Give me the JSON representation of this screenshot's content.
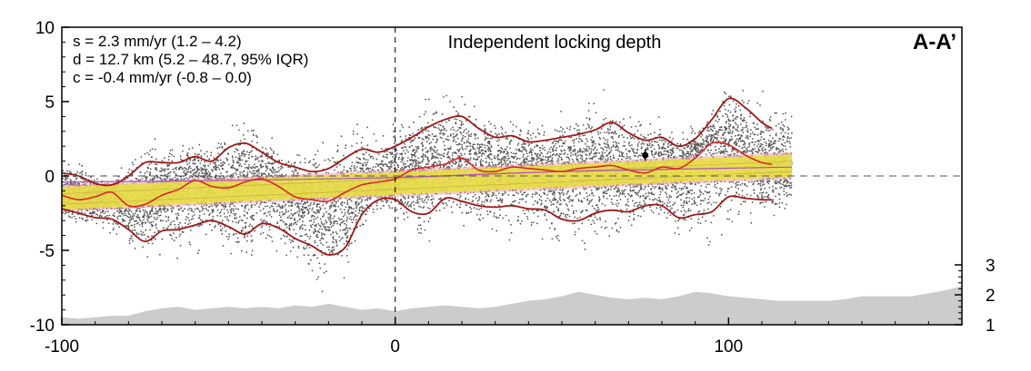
{
  "chart_data": {
    "type": "scatter",
    "title": "Independent locking depth",
    "panel_label": "A-A’",
    "annotations": [
      "s =  2.3 mm/yr (1.2 – 4.2)",
      "d =  12.7 km (5.2 – 48.7, 95% IQR)",
      "c =  -0.4 mm/yr (-0.8 – 0.0)"
    ],
    "xlabel": "",
    "ylabel": "",
    "xlim": [
      -100,
      170
    ],
    "ylim": [
      -10,
      10
    ],
    "x_ticks": [
      -100,
      0,
      100
    ],
    "y_ticks": [
      10,
      5,
      0,
      -5,
      -10
    ],
    "y_ticks_right": [
      3,
      2,
      1
    ],
    "y_right_lim": [
      1,
      3
    ],
    "grid": false,
    "reference_lines": {
      "x": 0,
      "y": 0
    },
    "colors": {
      "points": "#555555",
      "envelope": "#a01818",
      "median": "#d82828",
      "uncertainty_band": "#e6e23c",
      "model_band": "#f0a0b0",
      "model_line": "#b050c0",
      "topography": "#cccccc"
    },
    "envelope_upper": {
      "x": [
        -100,
        -95,
        -90,
        -85,
        -80,
        -75,
        -70,
        -65,
        -60,
        -55,
        -50,
        -45,
        -40,
        -35,
        -30,
        -25,
        -20,
        -15,
        -10,
        -5,
        0,
        5,
        10,
        15,
        20,
        25,
        30,
        35,
        40,
        45,
        50,
        55,
        60,
        65,
        70,
        75,
        80,
        85,
        90,
        95,
        100,
        105,
        110,
        113
      ],
      "y": [
        0.2,
        0.0,
        -0.5,
        -0.6,
        0.0,
        0.9,
        0.9,
        0.9,
        1.3,
        1.0,
        1.9,
        2.2,
        1.6,
        0.9,
        0.6,
        0.3,
        0.5,
        1.2,
        1.8,
        1.6,
        2.0,
        2.6,
        3.3,
        3.8,
        4.0,
        3.2,
        2.6,
        2.7,
        2.3,
        2.4,
        2.6,
        2.8,
        3.1,
        3.6,
        2.9,
        2.4,
        2.6,
        2.0,
        2.5,
        3.8,
        5.2,
        4.6,
        3.6,
        3.2
      ]
    },
    "envelope_lower": {
      "x": [
        -100,
        -95,
        -90,
        -85,
        -80,
        -75,
        -70,
        -65,
        -60,
        -55,
        -50,
        -45,
        -40,
        -35,
        -30,
        -25,
        -20,
        -15,
        -10,
        -5,
        0,
        5,
        10,
        15,
        20,
        25,
        30,
        35,
        40,
        45,
        50,
        55,
        60,
        65,
        70,
        75,
        80,
        85,
        90,
        95,
        100,
        105,
        110,
        113
      ],
      "y": [
        -2.2,
        -2.5,
        -2.8,
        -2.9,
        -3.6,
        -4.4,
        -3.7,
        -3.6,
        -3.3,
        -3.0,
        -3.4,
        -3.9,
        -3.2,
        -3.5,
        -4.2,
        -4.7,
        -5.3,
        -4.8,
        -2.6,
        -1.6,
        -1.6,
        -2.4,
        -2.5,
        -1.5,
        -1.7,
        -2.0,
        -2.1,
        -2.0,
        -2.2,
        -2.3,
        -2.9,
        -3.0,
        -2.5,
        -2.3,
        -2.4,
        -2.0,
        -2.0,
        -2.8,
        -2.6,
        -2.4,
        -1.4,
        -1.5,
        -1.6,
        -1.6
      ]
    },
    "median_line": {
      "x": [
        -100,
        -95,
        -90,
        -85,
        -80,
        -75,
        -70,
        -65,
        -60,
        -55,
        -50,
        -45,
        -40,
        -35,
        -30,
        -25,
        -20,
        -15,
        -10,
        -5,
        0,
        5,
        10,
        15,
        20,
        25,
        30,
        35,
        40,
        45,
        50,
        55,
        60,
        65,
        70,
        75,
        80,
        85,
        90,
        95,
        100,
        105,
        110,
        113
      ],
      "y": [
        -1.3,
        -1.6,
        -1.4,
        -1.1,
        -2.0,
        -1.9,
        -1.3,
        -0.9,
        -0.3,
        -0.7,
        -0.8,
        -0.4,
        -0.2,
        -0.7,
        -1.4,
        -1.6,
        -1.7,
        -1.1,
        -0.6,
        -0.4,
        -0.2,
        0.4,
        0.6,
        0.8,
        1.2,
        0.4,
        0.3,
        0.6,
        0.5,
        0.4,
        0.3,
        0.5,
        0.6,
        0.7,
        0.4,
        0.2,
        0.6,
        0.5,
        1.2,
        2.2,
        2.1,
        1.4,
        0.9,
        0.8
      ]
    },
    "model_band": {
      "x": [
        -100,
        119
      ],
      "lower": [
        -2.4,
        -0.2
      ],
      "upper": [
        -0.6,
        1.6
      ],
      "lower_inner": [
        -1.9,
        0.3
      ],
      "upper_inner": [
        -1.2,
        1.0
      ]
    },
    "model_line": {
      "x": [
        -100,
        -50,
        0,
        50,
        119
      ],
      "y": [
        -0.4,
        -0.3,
        -0.1,
        0.3,
        0.6
      ]
    },
    "marker": {
      "x": 75,
      "y": 1.4,
      "y_err": 0.4
    },
    "topography": {
      "x": [
        -100,
        -95,
        -90,
        -85,
        -80,
        -75,
        -70,
        -65,
        -60,
        -55,
        -50,
        -45,
        -40,
        -35,
        -30,
        -25,
        -20,
        -15,
        -10,
        -5,
        0,
        5,
        10,
        15,
        20,
        25,
        30,
        35,
        40,
        45,
        50,
        55,
        60,
        65,
        70,
        75,
        80,
        85,
        90,
        95,
        100,
        105,
        110,
        115,
        120,
        125,
        130,
        135,
        140,
        145,
        150,
        155,
        160,
        165,
        170
      ],
      "y": [
        1.25,
        1.2,
        1.25,
        1.3,
        1.3,
        1.45,
        1.55,
        1.6,
        1.5,
        1.55,
        1.6,
        1.55,
        1.6,
        1.55,
        1.65,
        1.6,
        1.7,
        1.6,
        1.5,
        1.55,
        1.45,
        1.55,
        1.6,
        1.65,
        1.6,
        1.55,
        1.6,
        1.7,
        1.8,
        1.85,
        1.95,
        2.1,
        2.0,
        1.9,
        1.85,
        1.9,
        1.85,
        1.95,
        2.1,
        2.05,
        1.95,
        1.9,
        1.85,
        1.8,
        1.8,
        1.8,
        1.8,
        1.85,
        1.95,
        1.95,
        1.95,
        1.95,
        2.05,
        2.15,
        2.3
      ]
    },
    "point_density": {
      "x_range": [
        -100,
        119
      ],
      "approx_count": 9000
    }
  }
}
